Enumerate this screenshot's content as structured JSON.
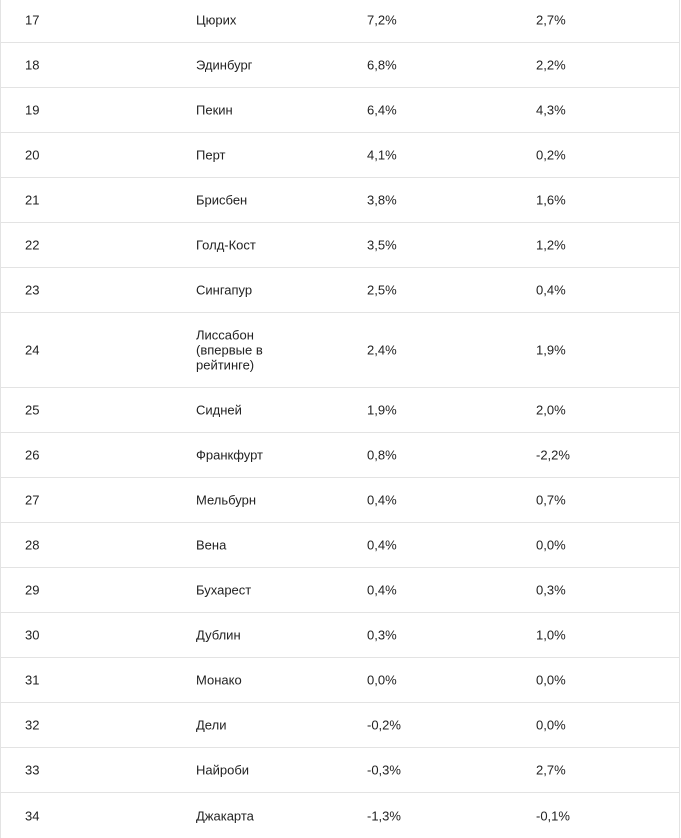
{
  "table": {
    "rows": [
      {
        "rank": "17",
        "city": "Цюрих",
        "col3": "7,2%",
        "col4": "2,7%"
      },
      {
        "rank": "18",
        "city": "Эдинбург",
        "col3": "6,8%",
        "col4": "2,2%"
      },
      {
        "rank": "19",
        "city": "Пекин",
        "col3": "6,4%",
        "col4": "4,3%"
      },
      {
        "rank": "20",
        "city": "Перт",
        "col3": "4,1%",
        "col4": "0,2%"
      },
      {
        "rank": "21",
        "city": "Брисбен",
        "col3": "3,8%",
        "col4": "1,6%"
      },
      {
        "rank": "22",
        "city": "Голд-Кост",
        "col3": "3,5%",
        "col4": "1,2%"
      },
      {
        "rank": "23",
        "city": "Сингапур",
        "col3": "2,5%",
        "col4": "0,4%"
      },
      {
        "rank": "24",
        "city": "Лиссабон (впервые в рейтинге)",
        "col3": "2,4%",
        "col4": "1,9%"
      },
      {
        "rank": "25",
        "city": "Сидней",
        "col3": "1,9%",
        "col4": "2,0%"
      },
      {
        "rank": "26",
        "city": "Франкфурт",
        "col3": "0,8%",
        "col4": "-2,2%"
      },
      {
        "rank": "27",
        "city": "Мельбурн",
        "col3": "0,4%",
        "col4": "0,7%"
      },
      {
        "rank": "28",
        "city": "Вена",
        "col3": "0,4%",
        "col4": "0,0%"
      },
      {
        "rank": "29",
        "city": "Бухарест",
        "col3": "0,4%",
        "col4": "0,3%"
      },
      {
        "rank": "30",
        "city": "Дублин",
        "col3": "0,3%",
        "col4": "1,0%"
      },
      {
        "rank": "31",
        "city": "Монако",
        "col3": "0,0%",
        "col4": "0,0%"
      },
      {
        "rank": "32",
        "city": "Дели",
        "col3": "-0,2%",
        "col4": "0,0%"
      },
      {
        "rank": "33",
        "city": "Найроби",
        "col3": "-0,3%",
        "col4": "2,7%"
      },
      {
        "rank": "34",
        "city": "Джакарта",
        "col3": "-1,3%",
        "col4": "-0,1%"
      }
    ]
  }
}
